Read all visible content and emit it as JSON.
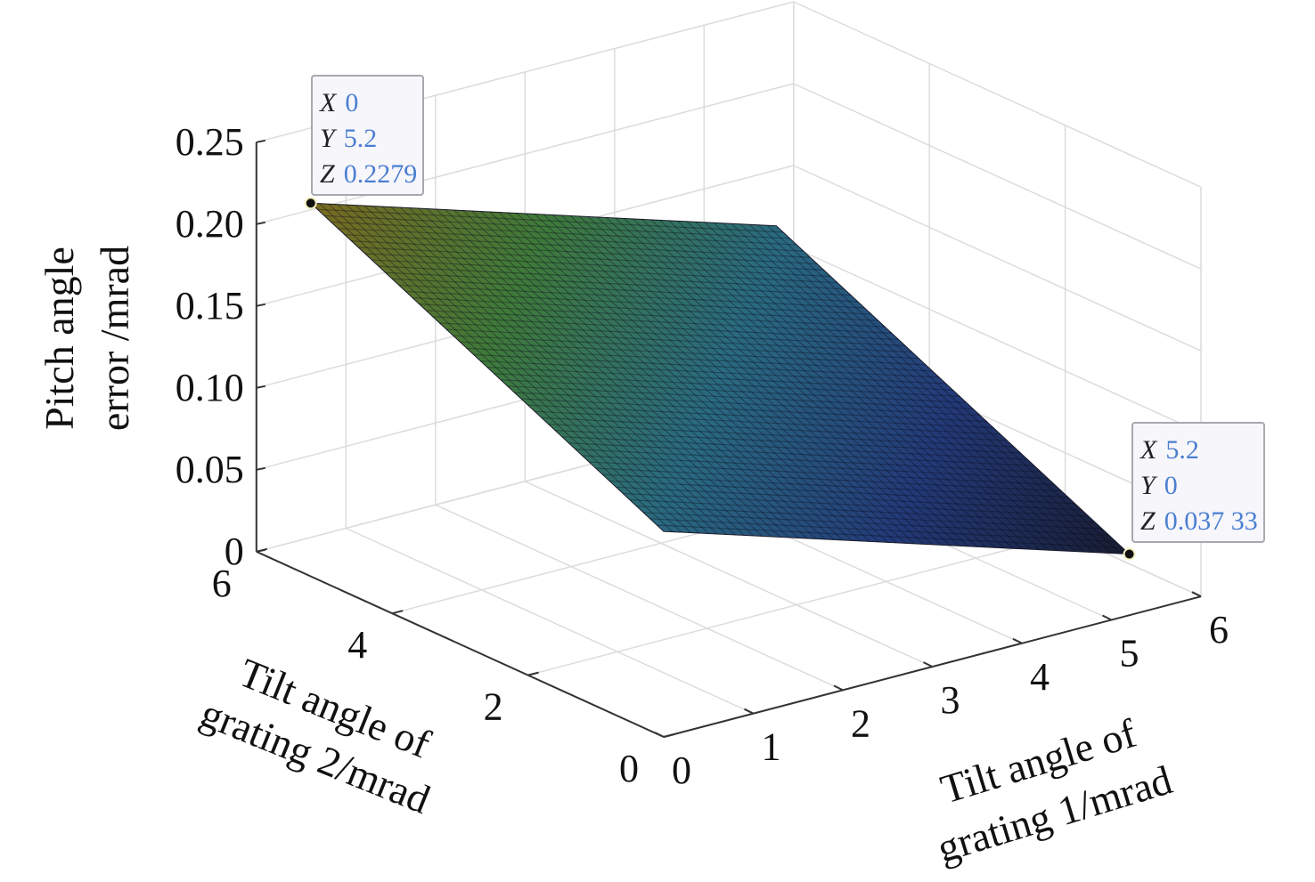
{
  "chart_data": {
    "type": "surface",
    "xlabel": "Tilt angle of grating 1/mrad",
    "xlabel_lines": [
      "Tilt angle of",
      "grating 1/mrad"
    ],
    "ylabel": "Tilt angle of grating 2/mrad",
    "ylabel_lines": [
      "Tilt angle of",
      "grating 2/mrad"
    ],
    "zlabel": "Pitch angle error /mrad",
    "zlabel_lines": [
      "Pitch angle",
      "error /mrad"
    ],
    "xlim": [
      0,
      6
    ],
    "ylim": [
      0,
      6
    ],
    "zlim": [
      0,
      0.25
    ],
    "xticks": [
      "0",
      "1",
      "2",
      "3",
      "4",
      "5",
      "6"
    ],
    "yticks": [
      "0",
      "2",
      "4",
      "6"
    ],
    "zticks": [
      "0",
      "0.05",
      "0.10",
      "0.15",
      "0.20",
      "0.25"
    ],
    "grid": true,
    "surface": {
      "x_range": [
        0,
        5.2
      ],
      "y_range": [
        0,
        5.2
      ],
      "z_at_0_0": 0.1255,
      "z_at_0_5.2": 0.2279,
      "z_at_5.2_0": 0.0373,
      "z_at_5.2_5.2": 0.139
    },
    "colormap_colors": [
      "#7a6a20",
      "#3f7a3a",
      "#2a6a80",
      "#233a78",
      "#181c30"
    ],
    "datatips": [
      {
        "x_label": "X",
        "x": "0",
        "y_label": "Y",
        "y": "5.2",
        "z_label": "Z",
        "z": "0.2279"
      },
      {
        "x_label": "X",
        "x": "5.2",
        "y_label": "Y",
        "y": "0",
        "z_label": "Z",
        "z": "0.037 33"
      }
    ]
  }
}
